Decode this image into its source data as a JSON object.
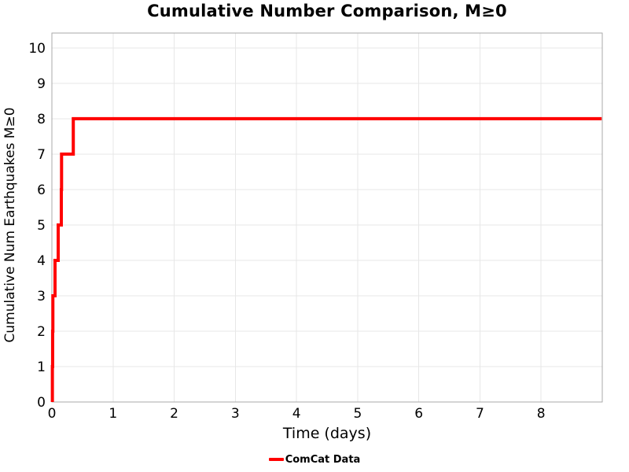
{
  "chart_data": {
    "type": "line",
    "step_mode": "post",
    "title": "Cumulative Number Comparison, M≥0",
    "xlabel": "Time (days)",
    "ylabel": "Cumulative Num Earthquakes M≥0",
    "xlim": [
      0,
      9.0
    ],
    "ylim": [
      0,
      10.42
    ],
    "xticks": [
      0,
      1,
      2,
      3,
      4,
      5,
      6,
      7,
      8
    ],
    "yticks": [
      0,
      1,
      2,
      3,
      4,
      5,
      6,
      7,
      8,
      9,
      10
    ],
    "grid": true,
    "legend_position": "bottom-center",
    "series": [
      {
        "name": "ComCat Data",
        "color": "#ff0000",
        "start": [
          0.008,
          0
        ],
        "events": [
          [
            0.008,
            1
          ],
          [
            0.012,
            2
          ],
          [
            0.016,
            3
          ],
          [
            0.051,
            4
          ],
          [
            0.103,
            5
          ],
          [
            0.154,
            6
          ],
          [
            0.158,
            7
          ],
          [
            0.35,
            8
          ]
        ],
        "end_x": 8.99,
        "final_value": 8
      }
    ]
  },
  "colors": {
    "grid": "#e7e7e7",
    "spine": "#aaaaaa",
    "text": "#000000",
    "background": "#ffffff"
  }
}
